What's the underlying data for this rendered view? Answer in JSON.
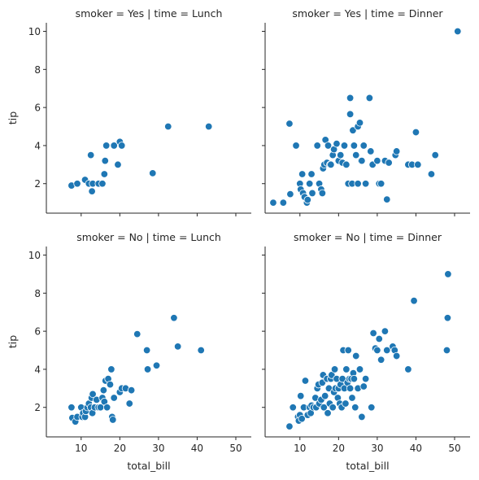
{
  "chart_data": {
    "type": "scatter",
    "xlabel": "total_bill",
    "ylabel": "tip",
    "xlim": [
      1,
      54
    ],
    "ylim": [
      0.45,
      10.45
    ],
    "xticks": [
      10,
      20,
      30,
      40,
      50
    ],
    "yticks": [
      2,
      4,
      6,
      8,
      10
    ],
    "marker_color": "#1f77b4",
    "marker_edge_color": "#ffffff",
    "grid": false,
    "panels": [
      {
        "title": "smoker = Yes | time = Lunch",
        "points": [
          [
            7.5,
            1.9
          ],
          [
            9,
            2
          ],
          [
            11,
            2.2
          ],
          [
            12,
            2
          ],
          [
            12.5,
            3.5
          ],
          [
            12.8,
            1.6
          ],
          [
            13,
            2
          ],
          [
            14.5,
            2
          ],
          [
            15.5,
            2
          ],
          [
            16,
            2.5
          ],
          [
            16.2,
            3.2
          ],
          [
            16.5,
            4
          ],
          [
            18.5,
            4
          ],
          [
            19.5,
            3
          ],
          [
            20,
            4.2
          ],
          [
            20.5,
            4
          ],
          [
            28.5,
            2.55
          ],
          [
            32.5,
            5
          ],
          [
            43,
            5
          ]
        ]
      },
      {
        "title": "smoker = Yes | time = Dinner",
        "points": [
          [
            3.1,
            1
          ],
          [
            5.7,
            1
          ],
          [
            7.3,
            5.15
          ],
          [
            7.5,
            1.45
          ],
          [
            9,
            4
          ],
          [
            10,
            2
          ],
          [
            10.2,
            1.7
          ],
          [
            10.6,
            2.5
          ],
          [
            10.8,
            1.5
          ],
          [
            11.2,
            1.3
          ],
          [
            11.8,
            1
          ],
          [
            12,
            1.15
          ],
          [
            12.5,
            2
          ],
          [
            13,
            2.5
          ],
          [
            13.2,
            1.5
          ],
          [
            14.5,
            4
          ],
          [
            15,
            2
          ],
          [
            15.5,
            1.7
          ],
          [
            15.8,
            1.5
          ],
          [
            16,
            2.8
          ],
          [
            16.3,
            3
          ],
          [
            16.6,
            4.3
          ],
          [
            17,
            3.1
          ],
          [
            17.3,
            4
          ],
          [
            17.8,
            3
          ],
          [
            18,
            3
          ],
          [
            18.5,
            3.5
          ],
          [
            18.8,
            3.8
          ],
          [
            19.5,
            4.1
          ],
          [
            20,
            3.2
          ],
          [
            20.5,
            3.5
          ],
          [
            21,
            3.1
          ],
          [
            21.5,
            4
          ],
          [
            22,
            3
          ],
          [
            22.5,
            2
          ],
          [
            23,
            6.5
          ],
          [
            23,
            5.65
          ],
          [
            23.5,
            2
          ],
          [
            23.7,
            4.8
          ],
          [
            24,
            4
          ],
          [
            24.5,
            3.5
          ],
          [
            25,
            2
          ],
          [
            25,
            5
          ],
          [
            25.5,
            5.2
          ],
          [
            25.8,
            3.2
          ],
          [
            26,
            3.2
          ],
          [
            26.5,
            4
          ],
          [
            27,
            2
          ],
          [
            28,
            6.5
          ],
          [
            28.3,
            3.7
          ],
          [
            28.8,
            3
          ],
          [
            30,
            3.2
          ],
          [
            30.5,
            2
          ],
          [
            31,
            2
          ],
          [
            32,
            3.2
          ],
          [
            32.5,
            1.17
          ],
          [
            33,
            3.1
          ],
          [
            34.7,
            3.5
          ],
          [
            35,
            3.7
          ],
          [
            38,
            3
          ],
          [
            39,
            3
          ],
          [
            40,
            4.7
          ],
          [
            40.5,
            3
          ],
          [
            44,
            2.5
          ],
          [
            45,
            3.5
          ],
          [
            50.8,
            10
          ]
        ]
      },
      {
        "title": "smoker = No | time = Lunch",
        "points": [
          [
            7.5,
            2
          ],
          [
            7.7,
            1.45
          ],
          [
            8.5,
            1.25
          ],
          [
            9,
            1.5
          ],
          [
            10,
            2
          ],
          [
            10.3,
            1.5
          ],
          [
            10.5,
            1.7
          ],
          [
            11,
            1.5
          ],
          [
            11.2,
            1.8
          ],
          [
            11.6,
            2
          ],
          [
            12,
            2.2
          ],
          [
            12.5,
            2
          ],
          [
            12.7,
            2.5
          ],
          [
            12.9,
            1.7
          ],
          [
            13,
            2.7
          ],
          [
            13.5,
            2
          ],
          [
            14,
            2.4
          ],
          [
            14.5,
            2
          ],
          [
            15,
            2
          ],
          [
            15.5,
            2.5
          ],
          [
            15.8,
            2.9
          ],
          [
            16,
            2.3
          ],
          [
            16.3,
            3.4
          ],
          [
            16.7,
            2
          ],
          [
            17,
            3.5
          ],
          [
            17.5,
            3.2
          ],
          [
            17.8,
            4
          ],
          [
            18,
            1.5
          ],
          [
            18.2,
            1.35
          ],
          [
            18.5,
            2.5
          ],
          [
            20,
            2.8
          ],
          [
            20.5,
            3
          ],
          [
            21.5,
            3
          ],
          [
            22.5,
            2.2
          ],
          [
            23,
            2.9
          ],
          [
            24.5,
            5.85
          ],
          [
            27,
            5
          ],
          [
            27.2,
            4
          ],
          [
            29.5,
            4.2
          ],
          [
            34,
            6.7
          ],
          [
            35,
            5.2
          ],
          [
            41,
            5
          ]
        ]
      },
      {
        "title": "smoker = No | time = Dinner",
        "points": [
          [
            7.3,
            1
          ],
          [
            8.2,
            2
          ],
          [
            9.5,
            1.5
          ],
          [
            9.7,
            1.3
          ],
          [
            10,
            1.6
          ],
          [
            10.2,
            2.6
          ],
          [
            10.5,
            1.4
          ],
          [
            11,
            2
          ],
          [
            11.4,
            3.4
          ],
          [
            12,
            1.6
          ],
          [
            12.5,
            2
          ],
          [
            12.8,
            1.7
          ],
          [
            13,
            2.1
          ],
          [
            13.5,
            2
          ],
          [
            14,
            2.5
          ],
          [
            14.2,
            2
          ],
          [
            14.5,
            3
          ],
          [
            14.8,
            3.2
          ],
          [
            15,
            2.2
          ],
          [
            15.5,
            2.4
          ],
          [
            15.8,
            3.3
          ],
          [
            16,
            3.7
          ],
          [
            16.2,
            2
          ],
          [
            16.5,
            2.6
          ],
          [
            17,
            3.5
          ],
          [
            17.2,
            1.7
          ],
          [
            17.5,
            3
          ],
          [
            17.7,
            2.2
          ],
          [
            18,
            3.5
          ],
          [
            18.2,
            3.7
          ],
          [
            18.5,
            2
          ],
          [
            18.8,
            2.8
          ],
          [
            19,
            4
          ],
          [
            19.2,
            3
          ],
          [
            19.5,
            3.5
          ],
          [
            19.8,
            2.5
          ],
          [
            20,
            3
          ],
          [
            20.3,
            2.2
          ],
          [
            20.5,
            3.2
          ],
          [
            20.8,
            2
          ],
          [
            21,
            3.5
          ],
          [
            21.2,
            5
          ],
          [
            21.5,
            3
          ],
          [
            21.8,
            2.2
          ],
          [
            22,
            4
          ],
          [
            22.3,
            3.3
          ],
          [
            22.5,
            5
          ],
          [
            22.8,
            3.5
          ],
          [
            23,
            3
          ],
          [
            23.3,
            3.5
          ],
          [
            23.5,
            2.5
          ],
          [
            23.8,
            3.8
          ],
          [
            24,
            3.5
          ],
          [
            24.3,
            2
          ],
          [
            24.5,
            4.7
          ],
          [
            25,
            3
          ],
          [
            25.5,
            4
          ],
          [
            26,
            1.5
          ],
          [
            26.5,
            3.1
          ],
          [
            27,
            3.5
          ],
          [
            28.5,
            2
          ],
          [
            29,
            5.9
          ],
          [
            29.5,
            5.1
          ],
          [
            30,
            5
          ],
          [
            30.5,
            5.6
          ],
          [
            31,
            4.5
          ],
          [
            32,
            6
          ],
          [
            32.5,
            5
          ],
          [
            34,
            5.2
          ],
          [
            34.5,
            5
          ],
          [
            35,
            4.7
          ],
          [
            38,
            4
          ],
          [
            39.5,
            7.6
          ],
          [
            48,
            5
          ],
          [
            48.2,
            6.7
          ],
          [
            48.3,
            9
          ]
        ]
      }
    ]
  }
}
